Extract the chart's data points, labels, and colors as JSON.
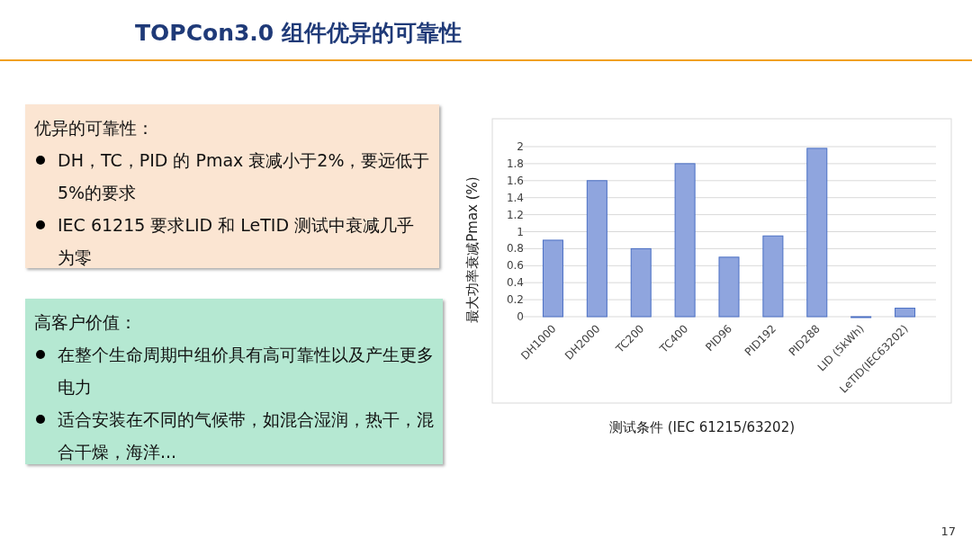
{
  "chart_data": {
    "type": "bar",
    "title": "TOPCon3.0 组件优异的可靠性",
    "xlabel": "测试条件 (IEC 61215/63202)",
    "ylabel": "最大功率衰减Pmax (%)",
    "categories": [
      "DH1000",
      "DH2000",
      "TC200",
      "TC400",
      "PID96",
      "PID192",
      "PID288",
      "LID (5kWh)",
      "LeTID(IEC63202)"
    ],
    "values": [
      0.9,
      1.6,
      0.8,
      1.8,
      0.7,
      0.95,
      1.98,
      0.0,
      0.1
    ],
    "color": "#8fa5de",
    "ylim": [
      0,
      2
    ],
    "yticks": [
      0,
      0.2,
      0.4,
      0.6,
      0.8,
      1,
      1.2,
      1.4,
      1.6,
      1.8,
      2
    ],
    "grid": "y",
    "annotations": [
      "优异的可靠性：",
      "DH，TC，PID 的 Pmax 衰减小于2%，要远低于5%的要求",
      "IEC 61215 要求LID 和 LeTID 测试中衰减几乎为零",
      "高客户价值：",
      "在整个生命周期中组价具有高可靠性以及产生更多电力",
      "适合安装在不同的气候带，如混合湿润，热干，混合干燥，海洋...",
      "17"
    ]
  }
}
